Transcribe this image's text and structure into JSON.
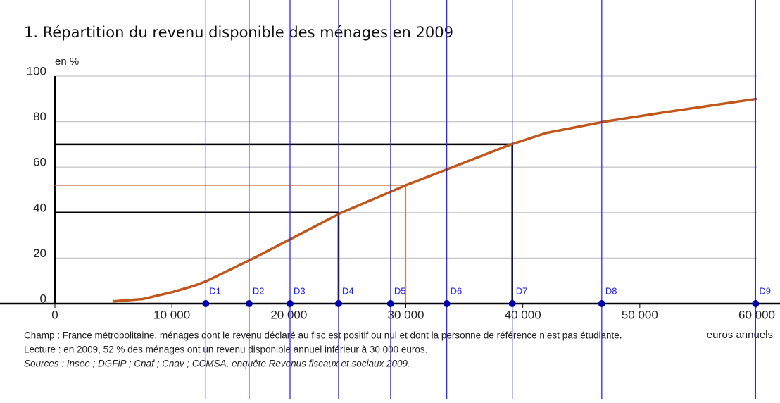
{
  "chart_data": {
    "type": "line",
    "title": "1. Répartition du revenu disponible des ménages en 2009",
    "y_label": "en %",
    "x_label": "euros annuels",
    "x": [
      5000,
      7500,
      10000,
      12000,
      13000,
      15000,
      17000,
      20000,
      24500,
      30000,
      34000,
      39000,
      42000,
      47000,
      52000,
      56000,
      60000
    ],
    "series": [
      {
        "color": "#c0561a",
        "values": [
          1,
          2,
          5,
          8,
          10,
          15,
          20,
          28,
          40,
          52,
          60,
          70,
          75,
          80,
          84,
          87,
          90
        ]
      }
    ],
    "xlim": [
      0,
      60000
    ],
    "ylim": [
      0,
      100
    ],
    "xticks": [
      0,
      {
        "value": 10000,
        "label": "10 000"
      },
      {
        "value": 20000,
        "label": "20 000"
      },
      {
        "value": 30000,
        "label": "30 000"
      },
      {
        "value": 40000,
        "label": "40 000"
      },
      {
        "value": 50000,
        "label": "50 000"
      },
      {
        "value": 60000,
        "label": "60 000"
      }
    ],
    "yticks": [
      0,
      20,
      40,
      60,
      80,
      100
    ],
    "grid": true,
    "deciles": {
      "color": "#1a1aff",
      "labels": [
        "D1",
        "D2",
        "D3",
        "D4",
        "D5",
        "D6",
        "D7",
        "D8",
        "D9"
      ],
      "values": [
        12900,
        16600,
        20100,
        24250,
        28700,
        33500,
        39100,
        46750,
        59900
      ]
    },
    "reference_lines": [
      {
        "x": 39100,
        "y": 70,
        "color": "#000000"
      },
      {
        "x": 24250,
        "y": 40,
        "color": "#000000"
      },
      {
        "x": 30000,
        "y": 52,
        "color": "#d08060"
      }
    ],
    "notes": [
      "Champ : France métropolitaine, ménages dont le revenu déclaré au fisc est positif ou nul et dont la personne de référence n’est pas étudiante.",
      "Lecture : en 2009, 52 % des ménages ont un revenu disponible annuel inférieur à 30 000 euros.",
      "Sources : Insee ; DGFiP ; Cnaf ; Cnav ; CCMSA, enquête Revenus fiscaux et sociaux 2009."
    ]
  }
}
